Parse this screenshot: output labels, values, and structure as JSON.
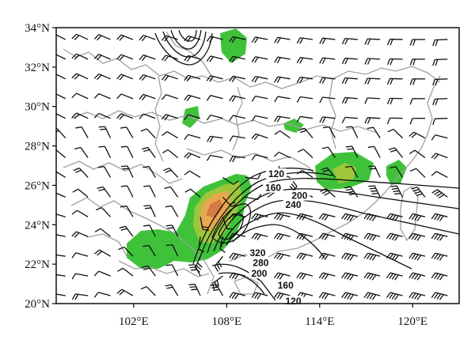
{
  "chart_data": {
    "type": "map",
    "title": "",
    "xlabel": "",
    "ylabel": "",
    "lon_range": [
      97,
      123
    ],
    "lat_range": [
      20,
      34
    ],
    "x_ticks": [
      {
        "value": 102,
        "label": "102°E"
      },
      {
        "value": 108,
        "label": "108°E"
      },
      {
        "value": 114,
        "label": "114°E"
      },
      {
        "value": 120,
        "label": "120°E"
      }
    ],
    "y_ticks": [
      {
        "value": 34,
        "label": "34°N"
      },
      {
        "value": 32,
        "label": "32°N"
      },
      {
        "value": 30,
        "label": "30°N"
      },
      {
        "value": 28,
        "label": "28°N"
      },
      {
        "value": 26,
        "label": "26°N"
      },
      {
        "value": 24,
        "label": "24°N"
      },
      {
        "value": 22,
        "label": "22°N"
      },
      {
        "value": 20,
        "label": "20°N"
      }
    ],
    "contour_labels": [
      {
        "text": "120",
        "lon": 111.2,
        "lat": 26.45
      },
      {
        "text": "160",
        "lon": 111.0,
        "lat": 25.75
      },
      {
        "text": "200",
        "lon": 112.7,
        "lat": 25.35
      },
      {
        "text": "240",
        "lon": 112.3,
        "lat": 24.9
      },
      {
        "text": "320",
        "lon": 110.0,
        "lat": 22.45
      },
      {
        "text": "280",
        "lon": 110.2,
        "lat": 21.95
      },
      {
        "text": "200",
        "lon": 110.1,
        "lat": 21.4
      },
      {
        "text": "160",
        "lon": 111.8,
        "lat": 20.8
      },
      {
        "text": "120",
        "lon": 112.3,
        "lat": 20.0
      }
    ],
    "shading_colors": {
      "low": "#3fc23a",
      "mid": "#9ec63c",
      "high": "#e8a850",
      "peak": "#d57a43"
    },
    "grid": false
  }
}
